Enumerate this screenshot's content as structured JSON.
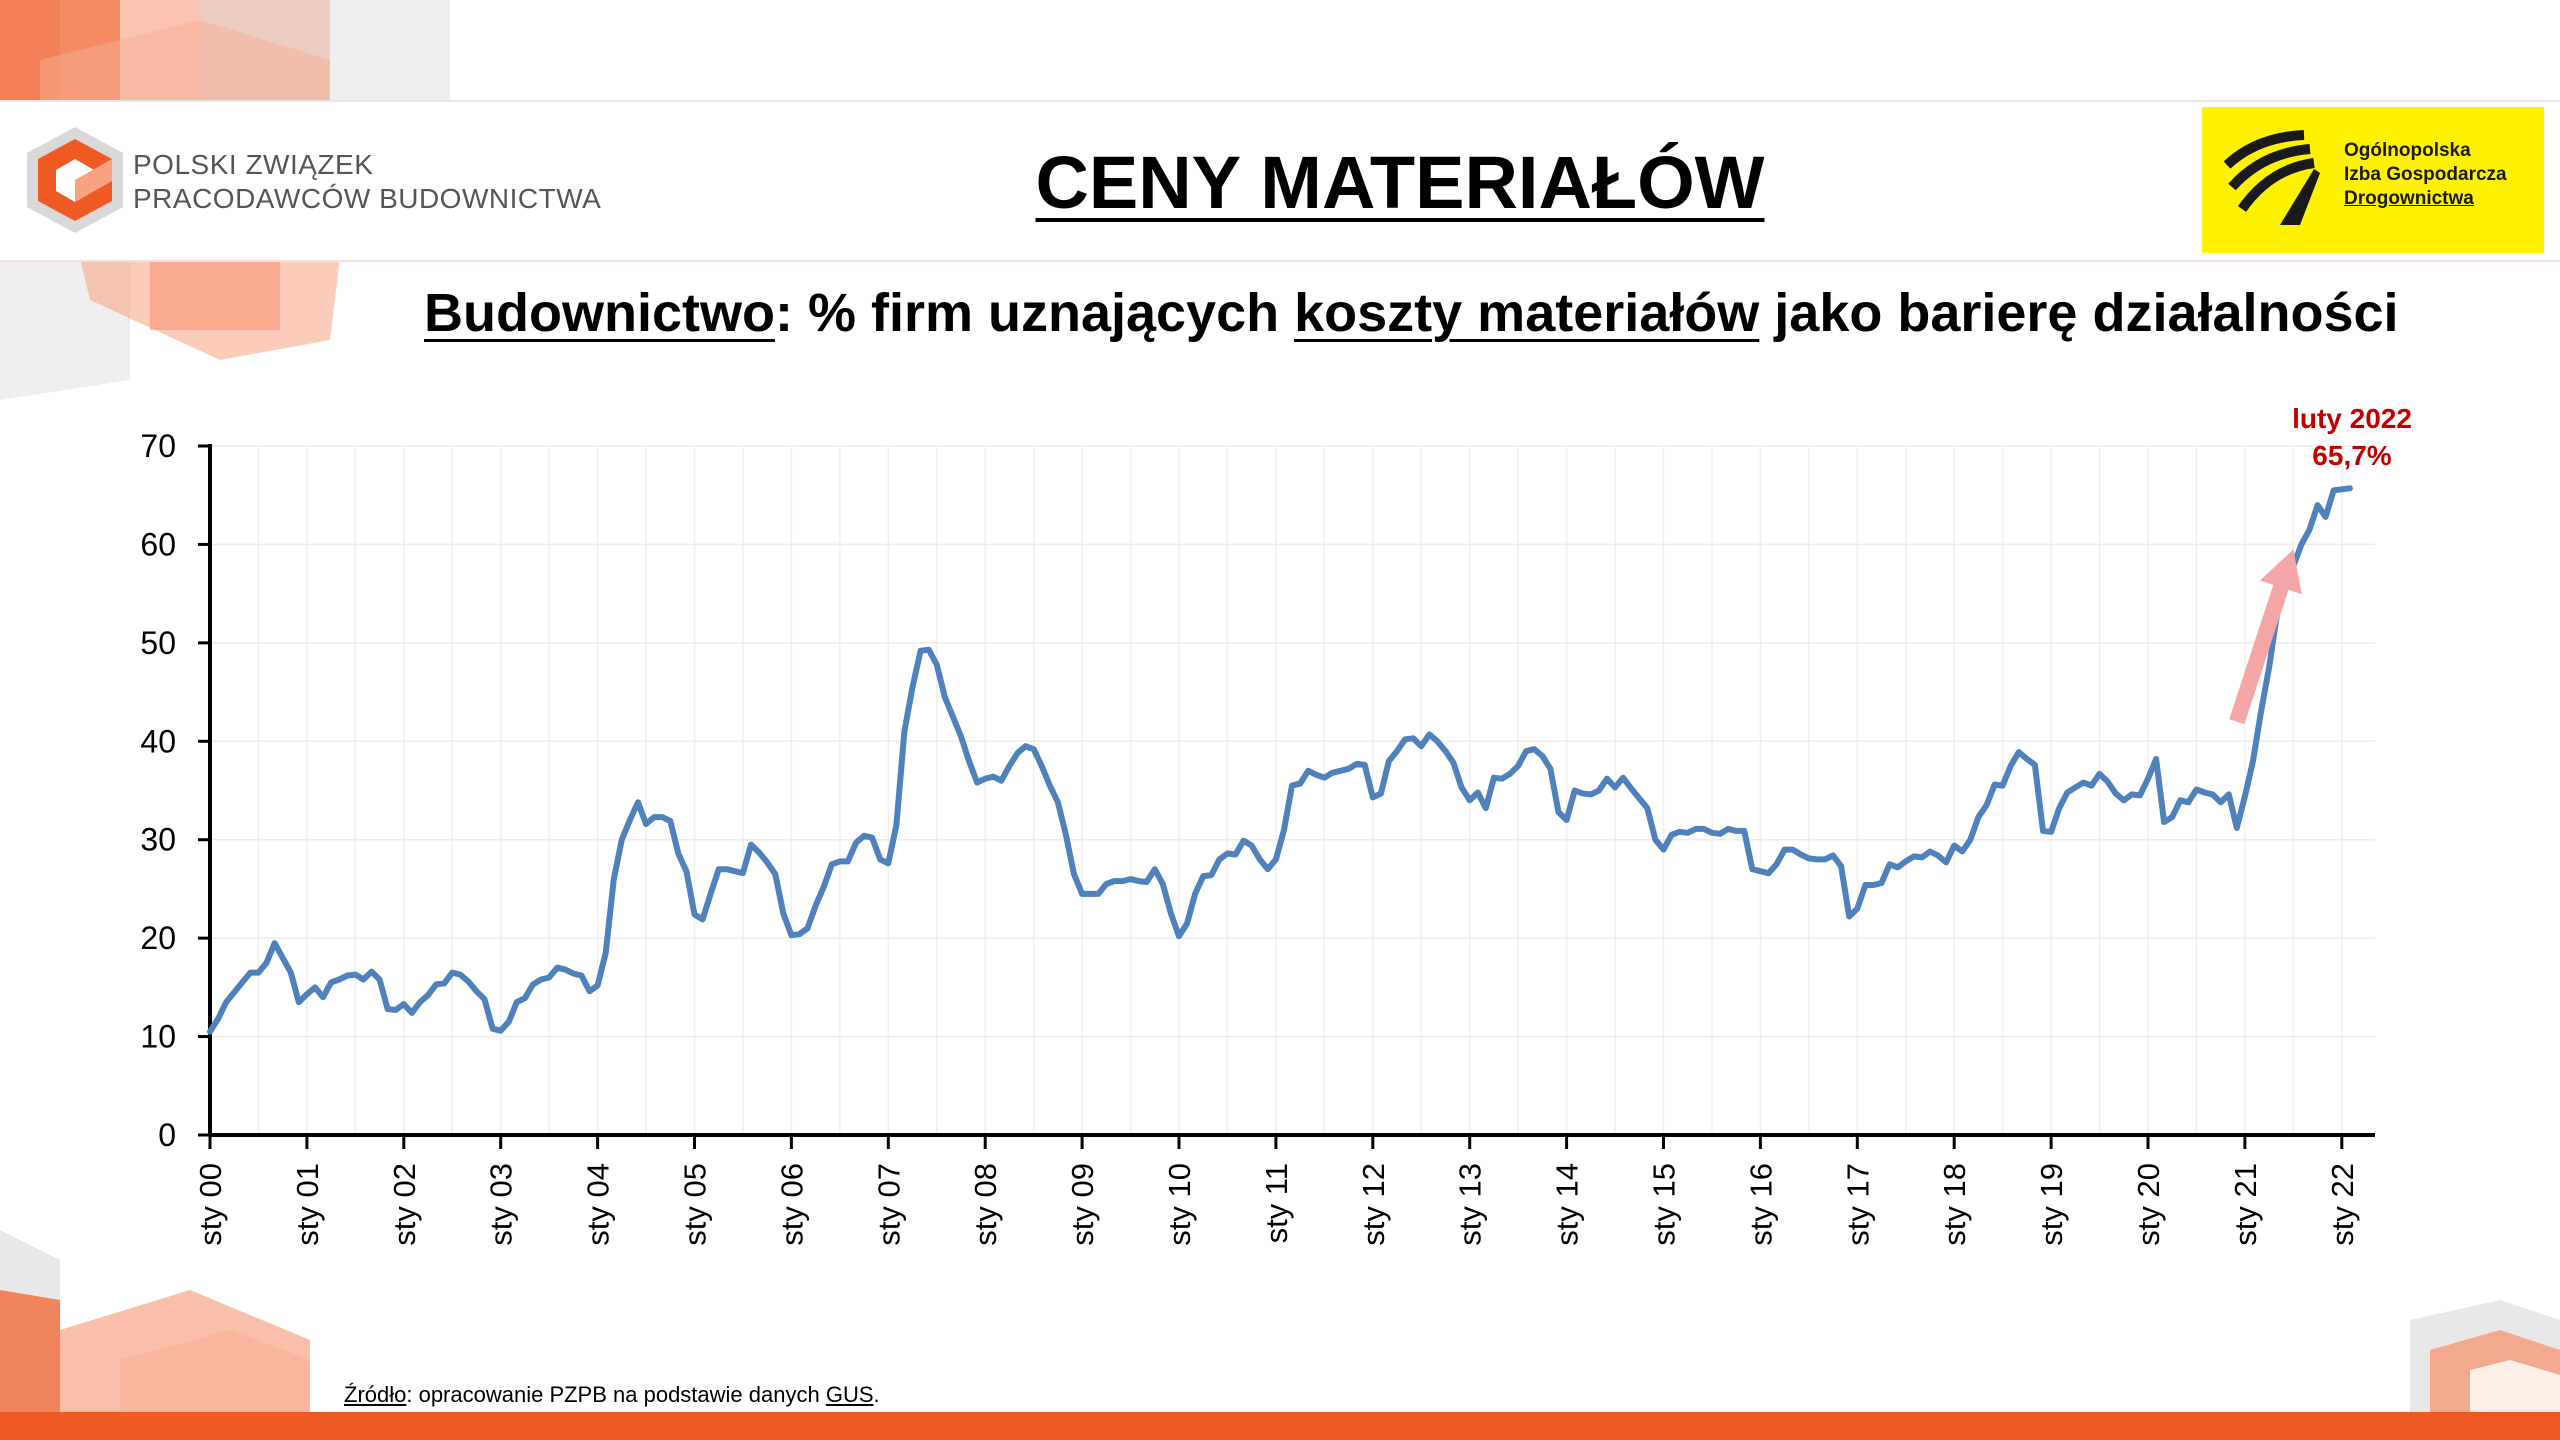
{
  "header": {
    "org_name_line1": "POLSKI ZWIĄZEK",
    "org_name_line2": "PRACODAWCÓW BUDOWNICTWA",
    "title": "CENY MATERIAŁÓW",
    "partner_line1": "Ogólnopolska",
    "partner_line2": "Izba Gospodarcza",
    "partner_line3": "Drogownictwa"
  },
  "subtitle": {
    "part1": "Budownictwo",
    "part2": ": % firm uznających ",
    "part3": "koszty materiałów",
    "part4": " jako barierę działalności"
  },
  "annotation": {
    "line1": "luty 2022",
    "line2": "65,7%",
    "color": "#c00000"
  },
  "source": {
    "label": "Źródło",
    "text": ": opracowanie PZPB na podstawie danych ",
    "gus": "GUS",
    "end": "."
  },
  "colors": {
    "line": "#4f81bd",
    "arrow": "#f4a6a6",
    "accent": "#ef5a24",
    "partner_bg": "#fff200"
  },
  "chart_data": {
    "type": "line",
    "title": "Budownictwo: % firm uznających koszty materiałów jako barierę działalności",
    "xlabel": "",
    "ylabel": "",
    "ylim": [
      0,
      70
    ],
    "yticks": [
      0,
      10,
      20,
      30,
      40,
      50,
      60,
      70
    ],
    "xticks": [
      "sty 00",
      "sty 01",
      "sty 02",
      "sty 03",
      "sty 04",
      "sty 05",
      "sty 06",
      "sty 07",
      "sty 08",
      "sty 09",
      "sty 10",
      "sty 11",
      "sty 12",
      "sty 13",
      "sty 14",
      "sty 15",
      "sty 16",
      "sty 17",
      "sty 18",
      "sty 19",
      "sty 20",
      "sty 21",
      "sty 22"
    ],
    "grid": true,
    "x_unit": "months since sty 00",
    "series": [
      {
        "name": "",
        "points": [
          [
            0,
            10.5
          ],
          [
            1,
            11.8
          ],
          [
            2,
            13.5
          ],
          [
            3,
            14.5
          ],
          [
            4,
            15.5
          ],
          [
            5,
            16.5
          ],
          [
            6,
            16.5
          ],
          [
            7,
            17.5
          ],
          [
            8,
            19.5
          ],
          [
            9,
            18
          ],
          [
            10,
            16.5
          ],
          [
            11,
            13.5
          ],
          [
            12,
            14.3
          ],
          [
            13,
            15
          ],
          [
            14,
            14
          ],
          [
            15,
            15.5
          ],
          [
            16,
            15.8
          ],
          [
            17,
            16.2
          ],
          [
            18,
            16.3
          ],
          [
            19,
            15.8
          ],
          [
            20,
            16.6
          ],
          [
            21,
            15.8
          ],
          [
            22,
            12.8
          ],
          [
            23,
            12.7
          ],
          [
            24,
            13.3
          ],
          [
            25,
            12.4
          ],
          [
            26,
            13.5
          ],
          [
            27,
            14.2
          ],
          [
            28,
            15.3
          ],
          [
            29,
            15.4
          ],
          [
            30,
            16.5
          ],
          [
            31,
            16.3
          ],
          [
            32,
            15.6
          ],
          [
            33,
            14.6
          ],
          [
            34,
            13.8
          ],
          [
            35,
            10.8
          ],
          [
            36,
            10.6
          ],
          [
            37,
            11.5
          ],
          [
            38,
            13.5
          ],
          [
            39,
            13.9
          ],
          [
            40,
            15.3
          ],
          [
            41,
            15.8
          ],
          [
            42,
            16
          ],
          [
            43,
            17
          ],
          [
            44,
            16.8
          ],
          [
            45,
            16.4
          ],
          [
            46,
            16.2
          ],
          [
            47,
            14.6
          ],
          [
            48,
            15.2
          ],
          [
            49,
            18.5
          ],
          [
            50,
            26
          ],
          [
            51,
            30
          ],
          [
            52,
            32
          ],
          [
            53,
            33.8
          ],
          [
            54,
            31.6
          ],
          [
            55,
            32.3
          ],
          [
            56,
            32.3
          ],
          [
            57,
            31.9
          ],
          [
            58,
            28.6
          ],
          [
            59,
            26.8
          ],
          [
            60,
            22.4
          ],
          [
            61,
            21.9
          ],
          [
            62,
            24.5
          ],
          [
            63,
            27
          ],
          [
            64,
            27
          ],
          [
            65,
            26.8
          ],
          [
            66,
            26.6
          ],
          [
            67,
            29.5
          ],
          [
            68,
            28.7
          ],
          [
            69,
            27.7
          ],
          [
            70,
            26.5
          ],
          [
            71,
            22.5
          ],
          [
            72,
            20.3
          ],
          [
            73,
            20.4
          ],
          [
            74,
            21
          ],
          [
            75,
            23.3
          ],
          [
            76,
            25.2
          ],
          [
            77,
            27.5
          ],
          [
            78,
            27.8
          ],
          [
            79,
            27.8
          ],
          [
            80,
            29.7
          ],
          [
            81,
            30.4
          ],
          [
            82,
            30.2
          ],
          [
            83,
            28
          ],
          [
            84,
            27.6
          ],
          [
            85,
            31.5
          ],
          [
            86,
            41
          ],
          [
            87,
            45.5
          ],
          [
            88,
            49.2
          ],
          [
            89,
            49.3
          ],
          [
            90,
            47.8
          ],
          [
            91,
            44.5
          ],
          [
            92,
            42.5
          ],
          [
            93,
            40.5
          ],
          [
            94,
            38
          ],
          [
            95,
            35.8
          ],
          [
            96,
            36.2
          ],
          [
            97,
            36.4
          ],
          [
            98,
            36
          ],
          [
            99,
            37.5
          ],
          [
            100,
            38.8
          ],
          [
            101,
            39.5
          ],
          [
            102,
            39.2
          ],
          [
            103,
            37.5
          ],
          [
            104,
            35.5
          ],
          [
            105,
            33.8
          ],
          [
            106,
            30.5
          ],
          [
            107,
            26.5
          ],
          [
            108,
            24.5
          ],
          [
            109,
            24.5
          ],
          [
            110,
            24.5
          ],
          [
            111,
            25.5
          ],
          [
            112,
            25.8
          ],
          [
            113,
            25.8
          ],
          [
            114,
            26
          ],
          [
            115,
            25.8
          ],
          [
            116,
            25.7
          ],
          [
            117,
            27
          ],
          [
            118,
            25.5
          ],
          [
            119,
            22.5
          ],
          [
            120,
            20.2
          ],
          [
            121,
            21.5
          ],
          [
            122,
            24.5
          ],
          [
            123,
            26.3
          ],
          [
            124,
            26.4
          ],
          [
            125,
            28
          ],
          [
            126,
            28.6
          ],
          [
            127,
            28.5
          ],
          [
            128,
            29.9
          ],
          [
            129,
            29.4
          ],
          [
            130,
            28
          ],
          [
            131,
            27
          ],
          [
            132,
            28
          ],
          [
            133,
            31
          ],
          [
            134,
            35.5
          ],
          [
            135,
            35.7
          ],
          [
            136,
            37
          ],
          [
            137,
            36.6
          ],
          [
            138,
            36.3
          ],
          [
            139,
            36.8
          ],
          [
            140,
            37
          ],
          [
            141,
            37.2
          ],
          [
            142,
            37.7
          ],
          [
            143,
            37.6
          ],
          [
            144,
            34.3
          ],
          [
            145,
            34.7
          ],
          [
            146,
            38
          ],
          [
            147,
            39
          ],
          [
            148,
            40.2
          ],
          [
            149,
            40.3
          ],
          [
            150,
            39.5
          ],
          [
            151,
            40.7
          ],
          [
            152,
            40
          ],
          [
            153,
            39
          ],
          [
            154,
            37.8
          ],
          [
            155,
            35.3
          ],
          [
            156,
            34
          ],
          [
            157,
            34.8
          ],
          [
            158,
            33.2
          ],
          [
            159,
            36.3
          ],
          [
            160,
            36.2
          ],
          [
            161,
            36.7
          ],
          [
            162,
            37.5
          ],
          [
            163,
            39
          ],
          [
            164,
            39.2
          ],
          [
            165,
            38.5
          ],
          [
            166,
            37.2
          ],
          [
            167,
            32.8
          ],
          [
            168,
            32
          ],
          [
            169,
            35
          ],
          [
            170,
            34.7
          ],
          [
            171,
            34.6
          ],
          [
            172,
            35
          ],
          [
            173,
            36.2
          ],
          [
            174,
            35.3
          ],
          [
            175,
            36.3
          ],
          [
            176,
            35.2
          ],
          [
            177,
            34.2
          ],
          [
            178,
            33.2
          ],
          [
            179,
            30
          ],
          [
            180,
            29
          ],
          [
            181,
            30.5
          ],
          [
            182,
            30.8
          ],
          [
            183,
            30.7
          ],
          [
            184,
            31.1
          ],
          [
            185,
            31.1
          ],
          [
            186,
            30.7
          ],
          [
            187,
            30.6
          ],
          [
            188,
            31.1
          ],
          [
            189,
            30.9
          ],
          [
            190,
            30.9
          ],
          [
            191,
            27
          ],
          [
            192,
            26.8
          ],
          [
            193,
            26.6
          ],
          [
            194,
            27.5
          ],
          [
            195,
            29
          ],
          [
            196,
            29
          ],
          [
            197,
            28.5
          ],
          [
            198,
            28.1
          ],
          [
            199,
            28
          ],
          [
            200,
            28
          ],
          [
            201,
            28.4
          ],
          [
            202,
            27.3
          ],
          [
            203,
            22.2
          ],
          [
            204,
            23
          ],
          [
            205,
            25.4
          ],
          [
            206,
            25.4
          ],
          [
            207,
            25.6
          ],
          [
            208,
            27.5
          ],
          [
            209,
            27.2
          ],
          [
            210,
            27.8
          ],
          [
            211,
            28.3
          ],
          [
            212,
            28.2
          ],
          [
            213,
            28.8
          ],
          [
            214,
            28.4
          ],
          [
            215,
            27.7
          ],
          [
            216,
            29.4
          ],
          [
            217,
            28.8
          ],
          [
            218,
            30
          ],
          [
            219,
            32.3
          ],
          [
            220,
            33.5
          ],
          [
            221,
            35.6
          ],
          [
            222,
            35.5
          ],
          [
            223,
            37.5
          ],
          [
            224,
            38.9
          ],
          [
            225,
            38.2
          ],
          [
            226,
            37.6
          ],
          [
            227,
            30.9
          ],
          [
            228,
            30.8
          ],
          [
            229,
            33.2
          ],
          [
            230,
            34.8
          ],
          [
            231,
            35.3
          ],
          [
            232,
            35.8
          ],
          [
            233,
            35.5
          ],
          [
            234,
            36.7
          ],
          [
            235,
            35.9
          ],
          [
            236,
            34.7
          ],
          [
            237,
            34
          ],
          [
            238,
            34.6
          ],
          [
            239,
            34.5
          ],
          [
            240,
            36.2
          ],
          [
            241,
            38.2
          ],
          [
            242,
            31.8
          ],
          [
            243,
            32.3
          ],
          [
            244,
            34
          ],
          [
            245,
            33.8
          ],
          [
            246,
            35.1
          ],
          [
            247,
            34.8
          ],
          [
            248,
            34.6
          ],
          [
            249,
            33.8
          ],
          [
            250,
            34.6
          ],
          [
            251,
            31.2
          ],
          [
            252,
            34.4
          ],
          [
            253,
            38
          ],
          [
            254,
            43
          ],
          [
            255,
            47.5
          ],
          [
            256,
            53
          ],
          [
            257,
            58
          ],
          [
            258,
            57.8
          ],
          [
            259,
            60
          ],
          [
            260,
            61.5
          ],
          [
            261,
            64
          ],
          [
            262,
            62.8
          ],
          [
            263,
            65.5
          ],
          [
            264,
            65.6
          ],
          [
            265,
            65.7
          ]
        ]
      }
    ]
  }
}
